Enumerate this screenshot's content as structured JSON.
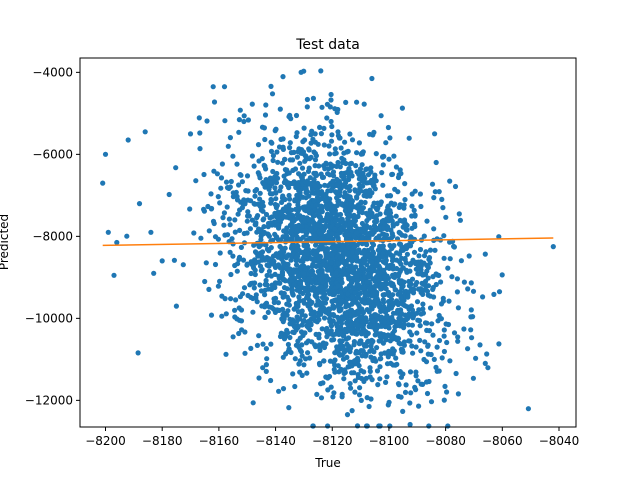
{
  "chart_data": {
    "type": "scatter",
    "title": "Test data",
    "xlabel": "True",
    "ylabel": "Predicted",
    "xlim": [
      -8209,
      -8034
    ],
    "ylim": [
      -12650,
      -3650
    ],
    "xticks": [
      -8200,
      -8180,
      -8160,
      -8140,
      -8120,
      -8100,
      -8080,
      -8060,
      -8040
    ],
    "yticks": [
      -12000,
      -10000,
      -8000,
      -6000,
      -4000
    ],
    "xtick_labels": [
      "−8200",
      "−8180",
      "−8160",
      "−8140",
      "−8120",
      "−8100",
      "−8080",
      "−8060",
      "−8040"
    ],
    "ytick_labels": [
      "−12000",
      "−10000",
      "−8000",
      "−6000",
      "−4000"
    ],
    "grid": false,
    "colors": {
      "scatter": "#1f77b4",
      "fit": "#ff7f0e"
    },
    "scatter_distribution": {
      "approx_point_count": 3000,
      "x_center": -8118,
      "x_spread": 18,
      "y_center": -8600,
      "y_spread": 1500,
      "xy_correlation": -0.3
    },
    "series": [
      {
        "type": "scatter",
        "points": [
          [
            -8131,
            -4000
          ],
          [
            -8162,
            -4350
          ],
          [
            -8158,
            -4350
          ],
          [
            -8135,
            -5050
          ],
          [
            -8200,
            -6000
          ],
          [
            -8201,
            -6700
          ],
          [
            -8199,
            -7900
          ],
          [
            -8196,
            -8150
          ],
          [
            -8197,
            -8950
          ],
          [
            -8042,
            -8250
          ],
          [
            -8061,
            -9350
          ],
          [
            -8066,
            -11100
          ],
          [
            -8079,
            -10150
          ],
          [
            -8083,
            -10700
          ],
          [
            -8107,
            -12150
          ],
          [
            -8112,
            -11800
          ],
          [
            -8113,
            -12250
          ],
          [
            -8180,
            -8600
          ],
          [
            -8175,
            -9700
          ],
          [
            -8170,
            -5500
          ],
          [
            -8186,
            -5450
          ],
          [
            -8192,
            -5650
          ],
          [
            -8188,
            -7200
          ],
          [
            -8184,
            -7900
          ],
          [
            -8183,
            -8900
          ],
          [
            -8165,
            -9100
          ],
          [
            -8155,
            -10450
          ],
          [
            -8148,
            -9850
          ],
          [
            -8096,
            -11300
          ],
          [
            -8092,
            -10400
          ],
          [
            -8140,
            -5400
          ],
          [
            -8126,
            -5500
          ]
        ]
      },
      {
        "type": "line",
        "points": [
          [
            -8201,
            -8220
          ],
          [
            -8042,
            -8040
          ]
        ]
      }
    ]
  }
}
